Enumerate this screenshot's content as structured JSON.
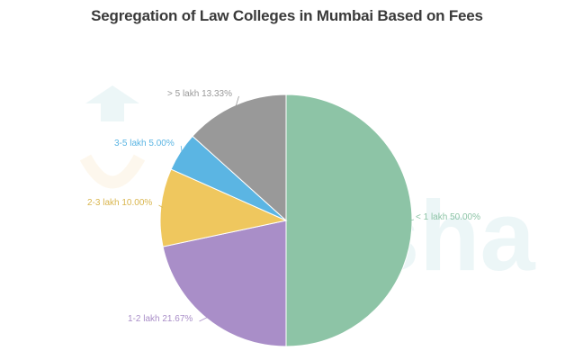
{
  "chart_data": {
    "type": "pie",
    "title": "Segregation of Law Colleges in Mumbai Based on Fees",
    "categories": [
      "< 1 lakh",
      "1-2 lakh",
      "2-3 lakh",
      "3-5 lakh",
      "> 5 lakh"
    ],
    "values": [
      50.0,
      21.67,
      10.0,
      5.0,
      13.33
    ],
    "labels": [
      "< 1 lakh 50.00%",
      "1-2 lakh 21.67%",
      "2-3 lakh 10.00%",
      "3-5 lakh 5.00%",
      "> 5 lakh 13.33%"
    ],
    "colors": [
      "#8dc4a6",
      "#a98ec8",
      "#efc75e",
      "#5bb5e3",
      "#999999"
    ],
    "label_colors": [
      "#8dc4a6",
      "#a98ec8",
      "#d9b64f",
      "#5bb5e3",
      "#999999"
    ],
    "start_angle": "top",
    "direction": "clockwise",
    "legend": "none",
    "watermark": "shiksha"
  }
}
